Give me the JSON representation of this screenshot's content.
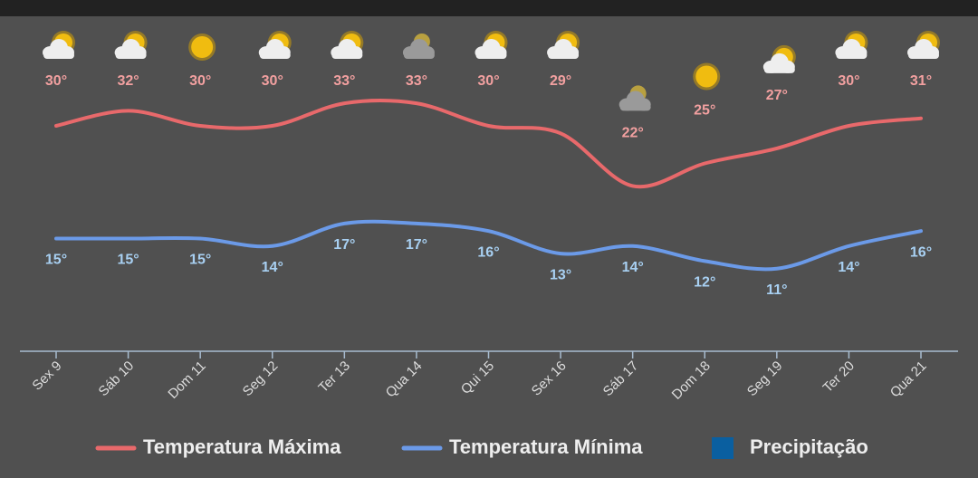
{
  "chart_data": {
    "type": "line",
    "categories": [
      "Sex 9",
      "Sáb 10",
      "Dom 11",
      "Seg 12",
      "Ter 13",
      "Qua 14",
      "Qui 15",
      "Sex 16",
      "Sáb 17",
      "Dom 18",
      "Seg 19",
      "Ter 20",
      "Qua 21"
    ],
    "series": [
      {
        "name": "Temperatura Máxima",
        "color": "#e8696b",
        "values": [
          30,
          32,
          30,
          30,
          33,
          33,
          30,
          29,
          22,
          25,
          27,
          30,
          31
        ],
        "value_labels": [
          "30°",
          "32°",
          "30°",
          "30°",
          "33°",
          "33°",
          "30°",
          "29°",
          "22°",
          "25°",
          "27°",
          "30°",
          "31°"
        ]
      },
      {
        "name": "Temperatura Mínima",
        "color": "#6b9ae8",
        "values": [
          15,
          15,
          15,
          14,
          17,
          17,
          16,
          13,
          14,
          12,
          11,
          14,
          16
        ],
        "value_labels": [
          "15°",
          "15°",
          "15°",
          "14°",
          "17°",
          "17°",
          "16°",
          "13°",
          "14°",
          "12°",
          "11°",
          "14°",
          "16°"
        ]
      },
      {
        "name": "Precipitação",
        "color": "#0a5fa0",
        "values": [
          null,
          null,
          null,
          null,
          null,
          null,
          null,
          null,
          null,
          null,
          null,
          null,
          null
        ]
      }
    ],
    "ylim": [
      0,
      40
    ],
    "legend": "bottom"
  }
}
